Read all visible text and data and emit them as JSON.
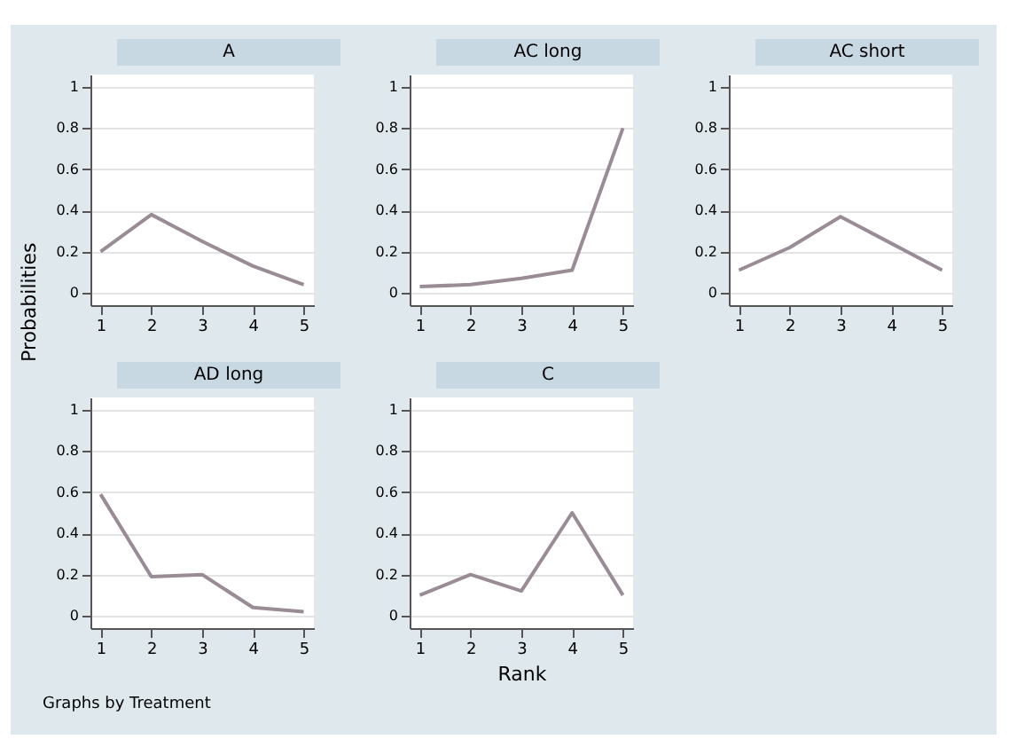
{
  "chart_data": [
    {
      "type": "line",
      "title": "A",
      "x": [
        1,
        2,
        3,
        4,
        5
      ],
      "series": [
        {
          "color": "#9a8c96",
          "values": [
            0.2,
            0.38,
            0.25,
            0.13,
            0.04
          ]
        }
      ],
      "xlim": [
        0.8,
        5.2
      ],
      "xticks": [
        1,
        2,
        3,
        4,
        5
      ],
      "ylim": [
        -0.06,
        1.06
      ],
      "yticks": [
        0,
        0.2,
        0.4,
        0.6,
        0.8,
        1
      ],
      "grid": "y"
    },
    {
      "type": "line",
      "title": "AC long",
      "x": [
        1,
        2,
        3,
        4,
        5
      ],
      "series": [
        {
          "color": "#9a8c96",
          "values": [
            0.03,
            0.04,
            0.07,
            0.11,
            0.8
          ]
        }
      ],
      "xlim": [
        0.8,
        5.2
      ],
      "xticks": [
        1,
        2,
        3,
        4,
        5
      ],
      "ylim": [
        -0.06,
        1.06
      ],
      "yticks": [
        0,
        0.2,
        0.4,
        0.6,
        0.8,
        1
      ],
      "grid": "y"
    },
    {
      "type": "line",
      "title": "AC short",
      "x": [
        1,
        2,
        3,
        4,
        5
      ],
      "series": [
        {
          "color": "#9a8c96",
          "values": [
            0.11,
            0.22,
            0.37,
            0.24,
            0.11
          ]
        }
      ],
      "xlim": [
        0.8,
        5.2
      ],
      "xticks": [
        1,
        2,
        3,
        4,
        5
      ],
      "ylim": [
        -0.06,
        1.06
      ],
      "yticks": [
        0,
        0.2,
        0.4,
        0.6,
        0.8,
        1
      ],
      "grid": "y"
    },
    {
      "type": "line",
      "title": "AD long",
      "ylabel": "Probabilities",
      "x": [
        1,
        2,
        3,
        4,
        5
      ],
      "series": [
        {
          "color": "#9a8c96",
          "values": [
            0.59,
            0.19,
            0.2,
            0.04,
            0.02
          ]
        }
      ],
      "xlim": [
        0.8,
        5.2
      ],
      "xticks": [
        1,
        2,
        3,
        4,
        5
      ],
      "ylim": [
        -0.06,
        1.06
      ],
      "yticks": [
        0,
        0.2,
        0.4,
        0.6,
        0.8,
        1
      ],
      "grid": "y",
      "annotations": [
        "Graphs by Treatment"
      ]
    },
    {
      "type": "line",
      "title": "C",
      "xlabel": "Rank",
      "x": [
        1,
        2,
        3,
        4,
        5
      ],
      "series": [
        {
          "color": "#9a8c96",
          "values": [
            0.1,
            0.2,
            0.12,
            0.5,
            0.1
          ]
        }
      ],
      "xlim": [
        0.8,
        5.2
      ],
      "xticks": [
        1,
        2,
        3,
        4,
        5
      ],
      "ylim": [
        -0.06,
        1.06
      ],
      "yticks": [
        0,
        0.2,
        0.4,
        0.6,
        0.8,
        1
      ],
      "grid": "y"
    }
  ]
}
